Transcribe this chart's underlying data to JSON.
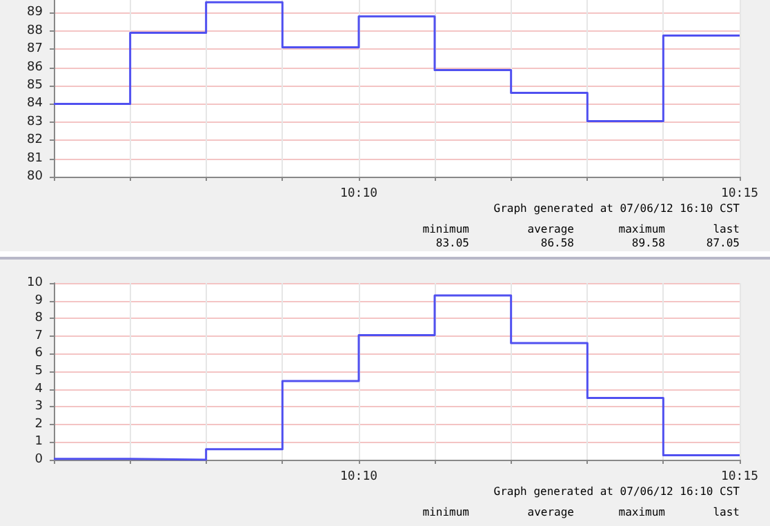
{
  "chart_data": [
    {
      "type": "step",
      "x": [
        10.1,
        10.1167,
        10.1333,
        10.15,
        10.1667,
        10.1833,
        10.2,
        10.2167,
        10.2333,
        10.25
      ],
      "values": [
        84.0,
        87.9,
        89.58,
        87.1,
        88.8,
        85.85,
        84.6,
        83.05,
        87.75,
        87.75
      ],
      "color": "#5050f0",
      "xlim": [
        10.1,
        10.25
      ],
      "xticks": [
        {
          "value": 10.1,
          "label": null
        },
        {
          "value": 10.1167,
          "label": null
        },
        {
          "value": 10.1333,
          "label": null
        },
        {
          "value": 10.15,
          "label": null
        },
        {
          "value": 10.1667,
          "label": "10:10"
        },
        {
          "value": 10.1833,
          "label": null
        },
        {
          "value": 10.2,
          "label": null
        },
        {
          "value": 10.2167,
          "label": null
        },
        {
          "value": 10.2333,
          "label": null
        },
        {
          "value": 10.25,
          "label": "10:15"
        }
      ],
      "ylim": [
        80,
        89.7
      ],
      "yticks": [
        80,
        81,
        82,
        83,
        84,
        85,
        86,
        87,
        88,
        89
      ],
      "grid": true,
      "marker": "none",
      "line_style": "solid",
      "annotations": [
        "Graph generated at 07/06/12 16:10 CST",
        "minimum",
        "average",
        "maximum",
        "last",
        "83.05",
        "86.58",
        "89.58",
        "87.05"
      ]
    },
    {
      "type": "step",
      "x": [
        10.1,
        10.1167,
        10.1333,
        10.15,
        10.1667,
        10.1833,
        10.2,
        10.2167,
        10.2333,
        10.25
      ],
      "values": [
        0.05,
        0,
        0.6,
        4.45,
        7.05,
        9.3,
        6.6,
        3.5,
        0.25,
        0.25
      ],
      "color": "#5050f0",
      "xlim": [
        10.1,
        10.25
      ],
      "xticks": [
        {
          "value": 10.1,
          "label": null
        },
        {
          "value": 10.1167,
          "label": null
        },
        {
          "value": 10.1333,
          "label": null
        },
        {
          "value": 10.15,
          "label": null
        },
        {
          "value": 10.1667,
          "label": "10:10"
        },
        {
          "value": 10.1833,
          "label": null
        },
        {
          "value": 10.2,
          "label": null
        },
        {
          "value": 10.2167,
          "label": null
        },
        {
          "value": 10.2333,
          "label": null
        },
        {
          "value": 10.25,
          "label": "10:15"
        }
      ],
      "ylim": [
        0,
        10
      ],
      "yticks": [
        0,
        1,
        2,
        3,
        4,
        5,
        6,
        7,
        8,
        9,
        10
      ],
      "grid": true,
      "marker": "none",
      "line_style": "solid",
      "annotations": [
        "Graph generated at 07/06/12 16:10 CST",
        "minimum",
        "average",
        "maximum",
        "last"
      ]
    }
  ]
}
